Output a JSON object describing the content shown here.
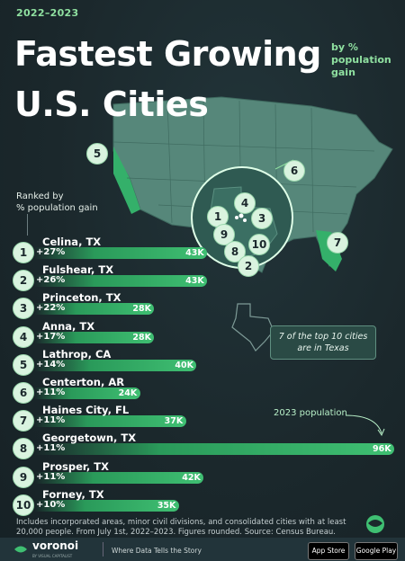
{
  "header": {
    "year": "2022–2023",
    "title_line1": "Fastest Growing",
    "title_line2": "U.S. Cities",
    "subtitle_line1": "by %",
    "subtitle_line2": "population",
    "subtitle_line3": "gain"
  },
  "ranked_label_line1": "Ranked by",
  "ranked_label_line2": "% population gain",
  "callout_line1": "7 of the top 10 cities",
  "callout_line2": "are in Texas",
  "annotation_2023": "2023 population",
  "footer_line1": "Includes incorporated areas, minor civil divisions, and consolidated cities with at least",
  "footer_line2": "20,000 people. From July 1st, 2022–2023. Figures rounded. Source: Census Bureau.",
  "brand": {
    "name": "voronoi",
    "sub": "BY VISUAL CAPITALIST",
    "tagline": "Where Data Tells the Story",
    "app_store": "App Store",
    "google_play": "Google Play"
  },
  "map_numbers": [
    "1",
    "2",
    "3",
    "4",
    "5",
    "6",
    "7",
    "8",
    "9",
    "10"
  ],
  "colors": {
    "background": "#1b282c",
    "accent_green": "#3fbf72",
    "light_green": "#8fe0a0",
    "badge": "#d9f3df"
  },
  "chart_data": {
    "type": "bar",
    "orientation": "horizontal",
    "categories": [
      "Celina, TX",
      "Fulshear, TX",
      "Princeton, TX",
      "Anna, TX",
      "Lathrop, CA",
      "Centerton, AR",
      "Haines City, FL",
      "Georgetown, TX",
      "Prosper, TX",
      "Forney, TX"
    ],
    "ranks": [
      "1",
      "2",
      "3",
      "4",
      "5",
      "6",
      "7",
      "8",
      "9",
      "10"
    ],
    "pct_gain_labels": [
      "+27%",
      "+26%",
      "+22%",
      "+17%",
      "+14%",
      "+11%",
      "+11%",
      "+11%",
      "+11%",
      "+10%"
    ],
    "pct_gain": [
      27,
      26,
      22,
      17,
      14,
      11,
      11,
      11,
      11,
      10
    ],
    "population_2023_labels": [
      "43K",
      "43K",
      "28K",
      "28K",
      "40K",
      "24K",
      "37K",
      "96K",
      "42K",
      "35K"
    ],
    "population_2023": [
      43,
      43,
      28,
      28,
      40,
      24,
      37,
      96,
      42,
      35
    ],
    "xlim": [
      0,
      96
    ]
  }
}
